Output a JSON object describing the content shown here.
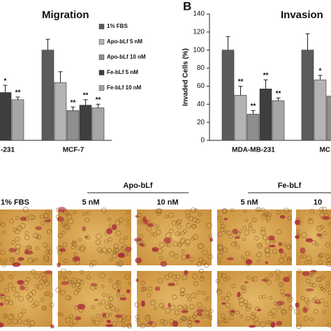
{
  "chart_data": [
    {
      "type": "bar",
      "title": "Migration",
      "categories": [
        "-231",
        "MCF-7"
      ],
      "ylim": [
        0,
        140
      ],
      "legend": true,
      "series": [
        {
          "name": "1% FBS",
          "color": "#5b5b5b",
          "values": [
            null,
            100
          ],
          "errors": [
            null,
            12
          ],
          "significance": [
            null,
            null
          ]
        },
        {
          "name": "Apo-bLf 5 nM",
          "color": "#b3b3b3",
          "values": [
            null,
            64
          ],
          "errors": [
            null,
            12
          ],
          "significance": [
            null,
            null
          ]
        },
        {
          "name": "Apo-bLf 10 nM",
          "color": "#8e8e8e",
          "values": [
            null,
            33
          ],
          "errors": [
            null,
            4
          ],
          "significance": [
            null,
            "**"
          ]
        },
        {
          "name": "Fe-bLf 5 nM",
          "color": "#3f3f3f",
          "values": [
            53,
            39
          ],
          "errors": [
            8,
            6
          ],
          "significance": [
            "*",
            "**"
          ]
        },
        {
          "name": "Fe-bLf 10 nM",
          "color": "#a6a6a6",
          "values": [
            45,
            36
          ],
          "errors": [
            3,
            4
          ],
          "significance": [
            "**",
            "**"
          ]
        }
      ]
    },
    {
      "type": "bar",
      "panel_label": "B",
      "title": "Invasion",
      "y_label": "Invaded Cells (%)",
      "categories": [
        "MDA-MB-231",
        "MC"
      ],
      "ylim": [
        0,
        140
      ],
      "yticks": [
        0,
        20,
        40,
        60,
        80,
        100,
        120,
        140
      ],
      "legend": false,
      "series": [
        {
          "color": "#5b5b5b",
          "values": [
            100,
            100
          ],
          "errors": [
            15,
            18
          ],
          "significance": [
            null,
            null
          ]
        },
        {
          "color": "#b3b3b3",
          "values": [
            50,
            67
          ],
          "errors": [
            10,
            5
          ],
          "significance": [
            "**",
            "*"
          ]
        },
        {
          "color": "#8e8e8e",
          "values": [
            29,
            49
          ],
          "errors": [
            4,
            5
          ],
          "significance": [
            "**",
            "*"
          ]
        },
        {
          "color": "#3f3f3f",
          "values": [
            57,
            null
          ],
          "errors": [
            10,
            null
          ],
          "significance": [
            "**",
            null
          ]
        },
        {
          "color": "#a6a6a6",
          "values": [
            44,
            null
          ],
          "errors": [
            3,
            null
          ],
          "significance": [
            "**",
            null
          ]
        }
      ]
    }
  ],
  "micrographs": {
    "columns": [
      "1% FBS",
      "5 nM",
      "10 nM",
      "5 nM",
      "10"
    ],
    "groups": [
      "Apo-bLf",
      "Fe-bLf"
    ]
  }
}
